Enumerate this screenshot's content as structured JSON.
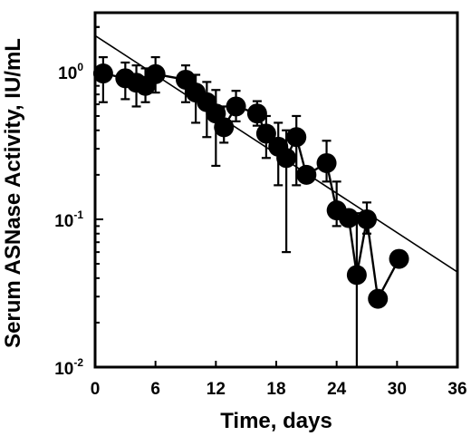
{
  "chart_data": {
    "type": "scatter",
    "title": "",
    "xlabel": "Time, days",
    "ylabel": "Serum ASNase Activity, IU/mL",
    "xlim": [
      0,
      36
    ],
    "ylim": [
      0.01,
      2.5
    ],
    "yscale": "log",
    "grid": false,
    "legend": "none",
    "x_ticks": [
      "0",
      "6",
      "12",
      "18",
      "24",
      "30",
      "36"
    ],
    "y_ticks": [
      {
        "value": 1,
        "mantissa": "10",
        "exponent": "0"
      },
      {
        "value": 0.1,
        "mantissa": "10",
        "exponent": "-1"
      },
      {
        "value": 0.01,
        "mantissa": "10",
        "exponent": "-2"
      }
    ],
    "fit_line": {
      "x": [
        0,
        36
      ],
      "y": [
        1.75,
        0.044
      ]
    },
    "series": [
      {
        "points": [
          {
            "x": 0.8,
            "y": 0.97,
            "err_lo": 0.62,
            "err_hi": 1.25
          },
          {
            "x": 3.0,
            "y": 0.9,
            "err_lo": 0.65,
            "err_hi": 1.15
          },
          {
            "x": 4.1,
            "y": 0.84,
            "err_lo": 0.58,
            "err_hi": 1.1
          },
          {
            "x": 5.0,
            "y": 0.8,
            "err_lo": 0.62,
            "err_hi": 1.05
          },
          {
            "x": 6.0,
            "y": 0.96,
            "err_lo": 0.72,
            "err_hi": 1.25
          },
          {
            "x": 9.0,
            "y": 0.88,
            "err_lo": 0.62,
            "err_hi": 1.1
          },
          {
            "x": 10.0,
            "y": 0.72,
            "err_lo": 0.45,
            "err_hi": 0.95
          },
          {
            "x": 11.1,
            "y": 0.62,
            "err_lo": 0.36,
            "err_hi": 0.85
          },
          {
            "x": 12.0,
            "y": 0.52,
            "err_lo": 0.23,
            "err_hi": 0.75
          },
          {
            "x": 12.8,
            "y": 0.42,
            "err_lo": 0.33,
            "err_hi": 0.58
          },
          {
            "x": 14.0,
            "y": 0.58,
            "err_lo": 0.46,
            "err_hi": 0.74
          },
          {
            "x": 16.1,
            "y": 0.52,
            "err_lo": 0.43,
            "err_hi": 0.63
          },
          {
            "x": 17.0,
            "y": 0.38,
            "err_lo": 0.26,
            "err_hi": 0.5
          },
          {
            "x": 18.2,
            "y": 0.31,
            "err_lo": 0.17,
            "err_hi": 0.45
          },
          {
            "x": 19.0,
            "y": 0.26,
            "err_lo": 0.06,
            "err_hi": 0.4
          },
          {
            "x": 20.0,
            "y": 0.36,
            "err_lo": 0.17,
            "err_hi": 0.5
          },
          {
            "x": 21.0,
            "y": 0.2
          },
          {
            "x": 23.0,
            "y": 0.24,
            "err_lo": 0.18,
            "err_hi": 0.34
          },
          {
            "x": 24.0,
            "y": 0.115,
            "err_lo": 0.09,
            "err_hi": 0.18
          },
          {
            "x": 25.2,
            "y": 0.102
          },
          {
            "x": 26.0,
            "y": 0.042,
            "err_lo": 0.01,
            "err_hi": 0.11
          },
          {
            "x": 27.0,
            "y": 0.1,
            "err_lo": 0.08,
            "err_hi": 0.13
          },
          {
            "x": 28.1,
            "y": 0.029
          },
          {
            "x": 30.2,
            "y": 0.054
          }
        ]
      }
    ]
  }
}
